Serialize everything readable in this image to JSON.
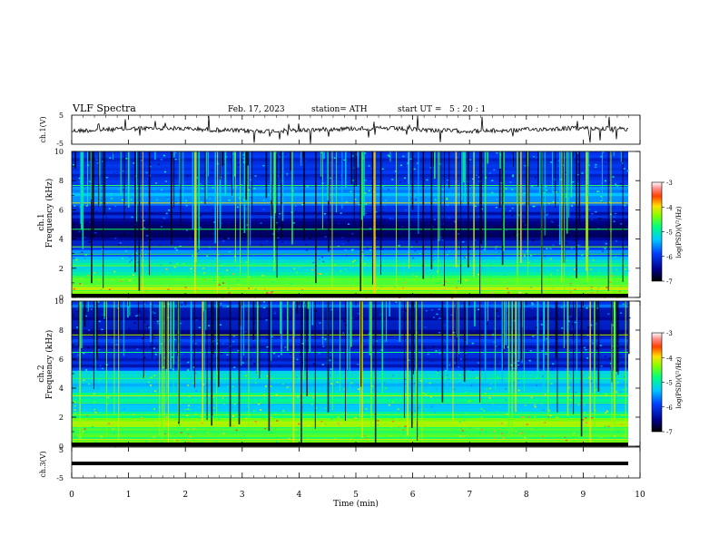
{
  "header": {
    "title": "VLF Spectra",
    "date": "Feb. 17, 2023",
    "station": "station= ATH",
    "start_ut": "start UT =   5 : 20 : 1"
  },
  "chart_data": [
    {
      "type": "line",
      "panel": "ch1-waveform",
      "ylabel": "ch.1(V)",
      "yticks": [
        "5",
        "-5"
      ],
      "ylim": [
        -5,
        5
      ],
      "xlim": [
        0,
        10
      ],
      "description": "noisy signal near 0 V across full 0–10 min span"
    },
    {
      "type": "heatmap",
      "panel": "ch1-spectrogram",
      "ylabel_top": "ch.1",
      "ylabel": "Frequency (kHz)",
      "yticks": [
        "0",
        "2",
        "4",
        "6",
        "8",
        "10"
      ],
      "ylim": [
        0,
        10
      ],
      "xlim": [
        0,
        9.8
      ],
      "colorbar": {
        "label": "log(PSD)(V²/Hz)",
        "ticks": [
          "-3",
          "-4",
          "-5",
          "-6",
          "-7"
        ],
        "range": [
          -7,
          -3
        ]
      },
      "bands_khz": [
        {
          "f": 0.3,
          "level": -4.0
        },
        {
          "f": 1.0,
          "level": -4.6
        },
        {
          "f": 1.6,
          "level": -5.0
        },
        {
          "f": 2.1,
          "level": -4.8
        },
        {
          "f": 2.6,
          "level": -5.6
        },
        {
          "f": 3.3,
          "level": -5.8
        },
        {
          "f": 4.2,
          "level": -6.9
        },
        {
          "f": 5.8,
          "level": -6.3
        },
        {
          "f": 6.6,
          "level": -5.4
        },
        {
          "f": 8.5,
          "level": -6.0
        }
      ]
    },
    {
      "type": "heatmap",
      "panel": "ch2-spectrogram",
      "ylabel_top": "ch.2",
      "ylabel": "Frequency (kHz)",
      "yticks": [
        "0",
        "2",
        "4",
        "6",
        "8",
        "10"
      ],
      "ylim": [
        0,
        10
      ],
      "xlim": [
        0,
        9.8
      ],
      "colorbar": {
        "label": "log(PSD)(V²/Hz)",
        "ticks": [
          "-3",
          "-4",
          "-5",
          "-6",
          "-7"
        ],
        "range": [
          -7,
          -3
        ]
      },
      "bands_khz": [
        {
          "f": 0.3,
          "level": -4.4
        },
        {
          "f": 1.0,
          "level": -4.8
        },
        {
          "f": 1.9,
          "level": -4.0
        },
        {
          "f": 2.5,
          "level": -5.4
        },
        {
          "f": 3.2,
          "level": -5.0
        },
        {
          "f": 4.6,
          "level": -5.2
        },
        {
          "f": 6.0,
          "level": -6.2
        },
        {
          "f": 8.5,
          "level": -6.4
        }
      ]
    },
    {
      "type": "line",
      "panel": "ch3-waveform",
      "ylabel": "ch.3(V)",
      "yticks": [
        "5",
        "-5"
      ],
      "ylim": [
        -5,
        5
      ],
      "xlim": [
        0,
        9.8
      ],
      "values_description": "flat line at approximately 0 V"
    }
  ],
  "xaxis": {
    "label": "Time (min)",
    "ticks": [
      "0",
      "1",
      "2",
      "3",
      "4",
      "5",
      "6",
      "7",
      "8",
      "9",
      "10"
    ],
    "range": [
      0,
      10
    ]
  }
}
